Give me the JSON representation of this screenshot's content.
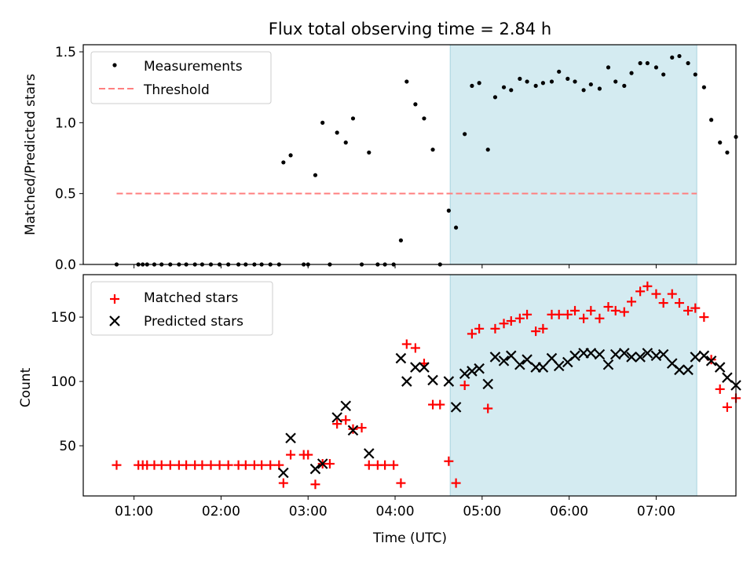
{
  "title": "Flux total observing time = 2.84 h",
  "colors": {
    "measurement": "#000000",
    "threshold": "#ff7f7f",
    "matched": "#ff0000",
    "predicted": "#000000",
    "highlight": "#d4ebf1",
    "highlight_edge": "#a8d3df"
  },
  "chart_data": [
    {
      "type": "scatter",
      "ylabel": "Matched/Predicted stars",
      "xlabel": "",
      "ylim": [
        0,
        1.55
      ],
      "yticks": [
        0.0,
        0.5,
        1.0,
        1.5
      ],
      "ytick_labels": [
        "0.0",
        "0.5",
        "1.0",
        "1.5"
      ],
      "grid": false,
      "legend_position": "top-left",
      "highlight_span": [
        "04:38",
        "07:28"
      ],
      "threshold": {
        "name": "Threshold",
        "y": 0.5,
        "x_range": [
          "00:48",
          "07:28"
        ]
      },
      "series": [
        {
          "name": "Measurements",
          "marker": "dot",
          "points": [
            [
              "00:48",
              0.0
            ],
            [
              "01:03",
              0.0
            ],
            [
              "01:06",
              0.0
            ],
            [
              "01:09",
              0.0
            ],
            [
              "01:14",
              0.0
            ],
            [
              "01:19",
              0.0
            ],
            [
              "01:25",
              0.0
            ],
            [
              "01:31",
              0.0
            ],
            [
              "01:36",
              0.0
            ],
            [
              "01:42",
              0.0
            ],
            [
              "01:47",
              0.0
            ],
            [
              "01:53",
              0.0
            ],
            [
              "01:59",
              0.0
            ],
            [
              "02:05",
              0.0
            ],
            [
              "02:12",
              0.0
            ],
            [
              "02:17",
              0.0
            ],
            [
              "02:23",
              0.0
            ],
            [
              "02:28",
              0.0
            ],
            [
              "02:34",
              0.0
            ],
            [
              "02:40",
              0.0
            ],
            [
              "02:43",
              0.72
            ],
            [
              "02:48",
              0.77
            ],
            [
              "02:57",
              0.0
            ],
            [
              "03:00",
              0.0
            ],
            [
              "03:05",
              0.63
            ],
            [
              "03:10",
              1.0
            ],
            [
              "03:15",
              0.0
            ],
            [
              "03:20",
              0.93
            ],
            [
              "03:26",
              0.86
            ],
            [
              "03:31",
              1.03
            ],
            [
              "03:37",
              0.0
            ],
            [
              "03:42",
              0.79
            ],
            [
              "03:48",
              0.0
            ],
            [
              "03:53",
              0.0
            ],
            [
              "03:59",
              0.0
            ],
            [
              "04:04",
              0.17
            ],
            [
              "04:08",
              1.29
            ],
            [
              "04:14",
              1.13
            ],
            [
              "04:20",
              1.03
            ],
            [
              "04:26",
              0.81
            ],
            [
              "04:31",
              0.0
            ],
            [
              "04:37",
              0.38
            ],
            [
              "04:42",
              0.26
            ],
            [
              "04:48",
              0.92
            ],
            [
              "04:53",
              1.26
            ],
            [
              "04:58",
              1.28
            ],
            [
              "05:04",
              0.81
            ],
            [
              "05:09",
              1.18
            ],
            [
              "05:15",
              1.25
            ],
            [
              "05:20",
              1.23
            ],
            [
              "05:26",
              1.31
            ],
            [
              "05:31",
              1.29
            ],
            [
              "05:37",
              1.26
            ],
            [
              "05:42",
              1.28
            ],
            [
              "05:48",
              1.29
            ],
            [
              "05:53",
              1.36
            ],
            [
              "05:59",
              1.31
            ],
            [
              "06:04",
              1.29
            ],
            [
              "06:10",
              1.23
            ],
            [
              "06:15",
              1.27
            ],
            [
              "06:21",
              1.24
            ],
            [
              "06:27",
              1.39
            ],
            [
              "06:32",
              1.29
            ],
            [
              "06:38",
              1.26
            ],
            [
              "06:43",
              1.35
            ],
            [
              "06:49",
              1.42
            ],
            [
              "06:54",
              1.42
            ],
            [
              "07:00",
              1.39
            ],
            [
              "07:05",
              1.34
            ],
            [
              "07:11",
              1.46
            ],
            [
              "07:16",
              1.47
            ],
            [
              "07:22",
              1.42
            ],
            [
              "07:27",
              1.34
            ],
            [
              "07:33",
              1.25
            ],
            [
              "07:38",
              1.02
            ],
            [
              "07:44",
              0.86
            ],
            [
              "07:49",
              0.79
            ],
            [
              "07:55",
              0.9
            ]
          ]
        }
      ]
    },
    {
      "type": "scatter",
      "ylabel": "Count",
      "xlabel": "Time (UTC)",
      "ylim": [
        11,
        183
      ],
      "yticks": [
        50,
        100,
        150
      ],
      "ytick_labels": [
        "50",
        "100",
        "150"
      ],
      "xlim": [
        "00:25",
        "07:55"
      ],
      "xticks": [
        "01:00",
        "02:00",
        "03:00",
        "04:00",
        "05:00",
        "06:00",
        "07:00"
      ],
      "grid": false,
      "legend_position": "top-left",
      "highlight_span": [
        "04:38",
        "07:28"
      ],
      "series": [
        {
          "name": "Matched stars",
          "marker": "plus",
          "points": [
            [
              "00:48",
              35
            ],
            [
              "01:03",
              35
            ],
            [
              "01:06",
              35
            ],
            [
              "01:09",
              35
            ],
            [
              "01:14",
              35
            ],
            [
              "01:19",
              35
            ],
            [
              "01:25",
              35
            ],
            [
              "01:31",
              35
            ],
            [
              "01:36",
              35
            ],
            [
              "01:42",
              35
            ],
            [
              "01:47",
              35
            ],
            [
              "01:53",
              35
            ],
            [
              "01:59",
              35
            ],
            [
              "02:05",
              35
            ],
            [
              "02:12",
              35
            ],
            [
              "02:17",
              35
            ],
            [
              "02:23",
              35
            ],
            [
              "02:28",
              35
            ],
            [
              "02:34",
              35
            ],
            [
              "02:40",
              35
            ],
            [
              "02:43",
              21
            ],
            [
              "02:48",
              43
            ],
            [
              "02:57",
              43
            ],
            [
              "03:00",
              43
            ],
            [
              "03:05",
              20
            ],
            [
              "03:10",
              36
            ],
            [
              "03:15",
              36
            ],
            [
              "03:20",
              67
            ],
            [
              "03:26",
              70
            ],
            [
              "03:31",
              63
            ],
            [
              "03:37",
              64
            ],
            [
              "03:42",
              35
            ],
            [
              "03:48",
              35
            ],
            [
              "03:53",
              35
            ],
            [
              "03:59",
              35
            ],
            [
              "04:04",
              21
            ],
            [
              "04:08",
              129
            ],
            [
              "04:14",
              126
            ],
            [
              "04:20",
              114
            ],
            [
              "04:26",
              82
            ],
            [
              "04:31",
              82
            ],
            [
              "04:37",
              38
            ],
            [
              "04:42",
              21
            ],
            [
              "04:48",
              97
            ],
            [
              "04:53",
              137
            ],
            [
              "04:58",
              141
            ],
            [
              "05:04",
              79
            ],
            [
              "05:09",
              141
            ],
            [
              "05:15",
              145
            ],
            [
              "05:20",
              147
            ],
            [
              "05:26",
              149
            ],
            [
              "05:31",
              152
            ],
            [
              "05:37",
              139
            ],
            [
              "05:42",
              141
            ],
            [
              "05:48",
              152
            ],
            [
              "05:53",
              152
            ],
            [
              "05:59",
              152
            ],
            [
              "06:04",
              155
            ],
            [
              "06:10",
              149
            ],
            [
              "06:15",
              155
            ],
            [
              "06:21",
              149
            ],
            [
              "06:27",
              158
            ],
            [
              "06:32",
              155
            ],
            [
              "06:38",
              154
            ],
            [
              "06:43",
              162
            ],
            [
              "06:49",
              170
            ],
            [
              "06:54",
              174
            ],
            [
              "07:00",
              168
            ],
            [
              "07:05",
              161
            ],
            [
              "07:11",
              168
            ],
            [
              "07:16",
              161
            ],
            [
              "07:22",
              155
            ],
            [
              "07:27",
              157
            ],
            [
              "07:33",
              150
            ],
            [
              "07:38",
              117
            ],
            [
              "07:44",
              94
            ],
            [
              "07:49",
              80
            ],
            [
              "07:55",
              87
            ]
          ]
        },
        {
          "name": "Predicted stars",
          "marker": "x",
          "points": [
            [
              "02:43",
              29
            ],
            [
              "02:48",
              56
            ],
            [
              "03:05",
              32
            ],
            [
              "03:10",
              36
            ],
            [
              "03:20",
              72
            ],
            [
              "03:26",
              81
            ],
            [
              "03:31",
              62
            ],
            [
              "03:42",
              44
            ],
            [
              "04:04",
              118
            ],
            [
              "04:08",
              100
            ],
            [
              "04:14",
              111
            ],
            [
              "04:20",
              111
            ],
            [
              "04:26",
              101
            ],
            [
              "04:37",
              100
            ],
            [
              "04:42",
              80
            ],
            [
              "04:48",
              106
            ],
            [
              "04:53",
              108
            ],
            [
              "04:58",
              110
            ],
            [
              "05:04",
              98
            ],
            [
              "05:09",
              119
            ],
            [
              "05:15",
              116
            ],
            [
              "05:20",
              120
            ],
            [
              "05:26",
              113
            ],
            [
              "05:31",
              117
            ],
            [
              "05:37",
              111
            ],
            [
              "05:42",
              111
            ],
            [
              "05:48",
              118
            ],
            [
              "05:53",
              112
            ],
            [
              "05:59",
              115
            ],
            [
              "06:04",
              120
            ],
            [
              "06:10",
              122
            ],
            [
              "06:15",
              122
            ],
            [
              "06:21",
              121
            ],
            [
              "06:27",
              113
            ],
            [
              "06:32",
              121
            ],
            [
              "06:38",
              122
            ],
            [
              "06:43",
              119
            ],
            [
              "06:49",
              119
            ],
            [
              "06:54",
              122
            ],
            [
              "07:00",
              120
            ],
            [
              "07:05",
              121
            ],
            [
              "07:11",
              114
            ],
            [
              "07:16",
              109
            ],
            [
              "07:22",
              109
            ],
            [
              "07:27",
              119
            ],
            [
              "07:33",
              120
            ],
            [
              "07:38",
              116
            ],
            [
              "07:44",
              111
            ],
            [
              "07:49",
              103
            ],
            [
              "07:55",
              97
            ]
          ]
        }
      ]
    }
  ]
}
